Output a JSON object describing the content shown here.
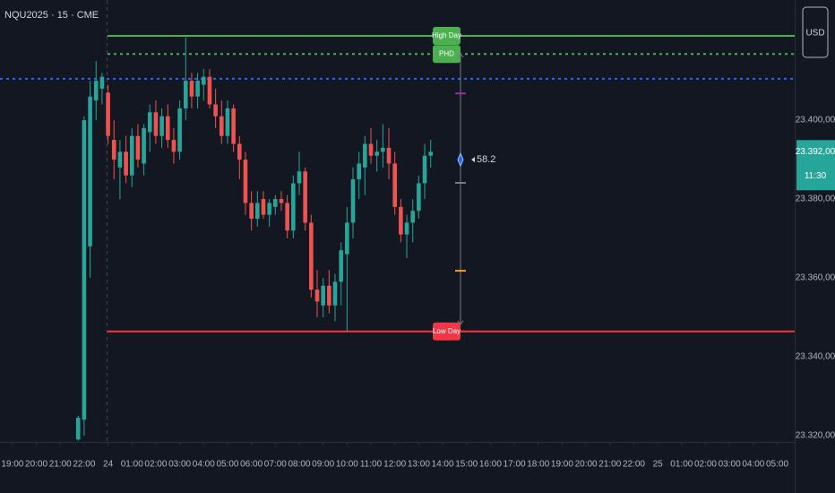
{
  "header": "NQU2025 · 15 · CME",
  "currency": "USD",
  "chart_data": {
    "type": "candlestick",
    "ylim": [
      23318.6,
      23430.5
    ],
    "yticks": [
      {
        "value": 23320,
        "label": "23.320,00"
      },
      {
        "value": 23340,
        "label": "23.340,00"
      },
      {
        "value": 23360,
        "label": "23.360,00"
      },
      {
        "value": 23380,
        "label": "23.380,00"
      },
      {
        "value": 23400,
        "label": "23.400,00"
      }
    ],
    "xlim": [
      -0.52,
      32.73
    ],
    "xticks": [
      {
        "value": 0,
        "label": "19:00"
      },
      {
        "value": 1,
        "label": "20:00"
      },
      {
        "value": 2,
        "label": "21:00"
      },
      {
        "value": 3,
        "label": "22:00"
      },
      {
        "value": 4,
        "label": "24"
      },
      {
        "value": 5,
        "label": "01:00"
      },
      {
        "value": 6,
        "label": "02:00"
      },
      {
        "value": 7,
        "label": "03:00"
      },
      {
        "value": 8,
        "label": "04:00"
      },
      {
        "value": 9,
        "label": "05:00"
      },
      {
        "value": 10,
        "label": "06:00"
      },
      {
        "value": 11,
        "label": "07:00"
      },
      {
        "value": 12,
        "label": "08:00"
      },
      {
        "value": 13,
        "label": "09:00"
      },
      {
        "value": 14,
        "label": "10:00"
      },
      {
        "value": 15,
        "label": "11:00"
      },
      {
        "value": 16,
        "label": "12:00"
      },
      {
        "value": 17,
        "label": "13:00"
      },
      {
        "value": 18,
        "label": "14:00"
      },
      {
        "value": 19,
        "label": "15:00"
      },
      {
        "value": 20,
        "label": "16:00"
      },
      {
        "value": 21,
        "label": "17:00"
      },
      {
        "value": 22,
        "label": "18:00"
      },
      {
        "value": 23,
        "label": "19:00"
      },
      {
        "value": 24,
        "label": "20:00"
      },
      {
        "value": 25,
        "label": "21:00"
      },
      {
        "value": 26,
        "label": "22:00"
      },
      {
        "value": 27,
        "label": "25"
      },
      {
        "value": 28,
        "label": "01:00"
      },
      {
        "value": 29,
        "label": "02:00"
      },
      {
        "value": 30,
        "label": "03:00"
      },
      {
        "value": 31,
        "label": "04:00"
      },
      {
        "value": 32,
        "label": "05:00"
      }
    ],
    "up_color": "#26a69a",
    "down_color": "#ef5350",
    "candles": {
      "x": [
        2.75,
        3,
        3.25,
        3.5,
        3.75,
        4,
        4.25,
        4.5,
        4.75,
        5,
        5.25,
        5.5,
        5.75,
        6,
        6.25,
        6.5,
        6.75,
        7,
        7.25,
        7.5,
        7.75,
        8,
        8.25,
        8.5,
        8.75,
        9,
        9.25,
        9.5,
        9.75,
        10,
        10.25,
        10.5,
        10.75,
        11,
        11.25,
        11.5,
        11.75,
        12,
        12.25,
        12.5,
        12.75,
        13,
        13.25,
        13.5,
        13.75,
        14,
        14.25,
        14.5,
        14.75,
        15,
        15.25,
        15.5,
        15.75,
        16,
        16.25,
        16.5,
        16.75,
        17,
        17.25,
        17.5
      ],
      "open": [
        23319,
        23324,
        23368,
        23405,
        23408,
        23407,
        23395,
        23388,
        23392,
        23386,
        23396,
        23389,
        23397,
        23402,
        23396,
        23401,
        23395,
        23392,
        23403,
        23410,
        23406,
        23409,
        23411,
        23404,
        23401,
        23396,
        23403,
        23394,
        23390,
        23379,
        23375,
        23380,
        23376,
        23378,
        23380,
        23379,
        23372,
        23384,
        23387,
        23374,
        23357,
        23353,
        23358,
        23353,
        23359,
        23366,
        23374,
        23385,
        23388,
        23394,
        23391,
        23392,
        23393,
        23389,
        23378,
        23371,
        23374,
        23377,
        23384,
        23391
      ],
      "high": [
        23325,
        23401,
        23410,
        23415,
        23412,
        23409,
        23400,
        23395,
        23396,
        23398,
        23399,
        23399,
        23404,
        23405,
        23403,
        23404,
        23398,
        23405,
        23421,
        23412,
        23412,
        23413,
        23413,
        23408,
        23405,
        23405,
        23404,
        23396,
        23392,
        23382,
        23382,
        23382,
        23380,
        23381,
        23382,
        23381,
        23386,
        23392,
        23388,
        23376,
        23362,
        23360,
        23362,
        23361,
        23369,
        23378,
        23388,
        23392,
        23396,
        23398,
        23395,
        23399,
        23398,
        23392,
        23380,
        23376,
        23380,
        23386,
        23394,
        23395
      ],
      "low": [
        23318.7,
        23320,
        23360,
        23400,
        23404,
        23394,
        23385,
        23380,
        23384,
        23383,
        23388,
        23386,
        23392,
        23394,
        23393,
        23393,
        23389,
        23390,
        23400,
        23403,
        23403,
        23405,
        23403,
        23398,
        23394,
        23394,
        23392,
        23385,
        23376,
        23372,
        23373,
        23375,
        23373,
        23376,
        23377,
        23370,
        23370,
        23381,
        23372,
        23355,
        23350,
        23350,
        23351,
        23349,
        23353,
        23346.5,
        23370,
        23380,
        23381,
        23389,
        23387,
        23388,
        23385,
        23376,
        23369,
        23365,
        23369,
        23375,
        23380,
        23388
      ],
      "close": [
        23324.5,
        23400,
        23406,
        23410,
        23411,
        23396,
        23390,
        23392,
        23386,
        23396,
        23390,
        23398,
        23402,
        23396,
        23401,
        23395,
        23392,
        23403,
        23410,
        23406,
        23410,
        23411,
        23404,
        23401,
        23396,
        23403,
        23394,
        23390,
        23379,
        23375,
        23379,
        23376,
        23379,
        23380,
        23379,
        23372,
        23384,
        23387,
        23374,
        23357,
        23354,
        23358,
        23353,
        23359,
        23367,
        23374,
        23385,
        23389,
        23394,
        23391,
        23392,
        23393,
        23389,
        23378,
        23371,
        23374,
        23377,
        23384,
        23391,
        23392
      ]
    },
    "levels": [
      {
        "name": "High Day",
        "value": 23421.4,
        "color": "#4caf50",
        "style": "solid"
      },
      {
        "name": "PHD",
        "value": 23416.8,
        "color": "#4caf50",
        "style": "dotted"
      },
      {
        "value": 23410.5,
        "color": "#2962ff",
        "style": "dotted"
      },
      {
        "name": "Low Day",
        "value": 23346.4,
        "color": "#f23645",
        "style": "solid"
      }
    ],
    "measure": {
      "markers": [
        {
          "value": 23406.8,
          "color": "#9c27b0"
        },
        {
          "value": 23384.1,
          "color": "#787b86"
        },
        {
          "value": 23361.8,
          "color": "#ff9800"
        }
      ],
      "diamond": {
        "value": 23390,
        "reading": 58.2,
        "color": "#2962ff"
      }
    },
    "last_price": {
      "value": 23392,
      "label": "23.392,00",
      "countdown": "11:30",
      "color": "#26a69a"
    }
  }
}
